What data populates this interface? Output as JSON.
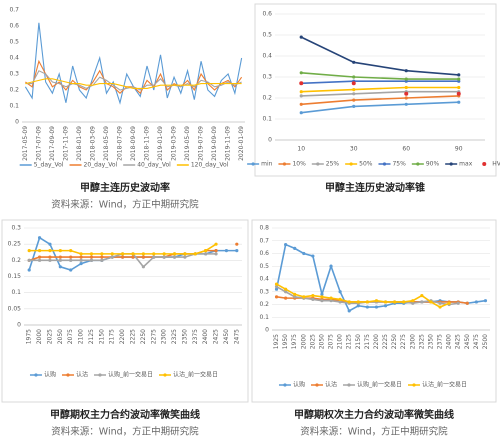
{
  "chart_data": [
    {
      "type": "line",
      "title": "甲醇主连历史波动率",
      "source": "资料来源：Wind，方正中期研究院",
      "categories": [
        "2017-05-09",
        null,
        "2017-07-09",
        null,
        "2017-09-09",
        null,
        "2017-11-09",
        null,
        "2018-01-09",
        null,
        "2018-03-09",
        null,
        "2018-05-09",
        null,
        "2018-07-09",
        null,
        "2018-09-09",
        null,
        "2018-11-09",
        null,
        "2019-01-09",
        null,
        "2019-03-09",
        null,
        "2019-05-09",
        null,
        "2019-07-09",
        null,
        "2019-09-09",
        null,
        "2019-11-09",
        null,
        "2020-01-09"
      ],
      "series": [
        {
          "name": "5_day_Vol",
          "color": "#5b9bd5",
          "values": [
            0.22,
            0.15,
            0.62,
            0.25,
            0.18,
            0.3,
            0.12,
            0.35,
            0.2,
            0.15,
            0.28,
            0.4,
            0.18,
            0.25,
            0.12,
            0.3,
            0.22,
            0.16,
            0.35,
            0.2,
            0.42,
            0.15,
            0.28,
            0.18,
            0.32,
            0.14,
            0.38,
            0.2,
            0.16,
            0.26,
            0.3,
            0.18,
            0.4
          ]
        },
        {
          "name": "20_day_Vol",
          "color": "#ed7d31",
          "values": [
            0.25,
            0.22,
            0.38,
            0.3,
            0.22,
            0.25,
            0.2,
            0.26,
            0.22,
            0.2,
            0.25,
            0.32,
            0.24,
            0.22,
            0.18,
            0.22,
            0.22,
            0.18,
            0.26,
            0.22,
            0.3,
            0.2,
            0.24,
            0.22,
            0.26,
            0.2,
            0.3,
            0.24,
            0.2,
            0.24,
            0.26,
            0.22,
            0.28
          ]
        },
        {
          "name": "40_day_Vol",
          "color": "#a5a5a5",
          "values": [
            0.24,
            0.24,
            0.32,
            0.3,
            0.25,
            0.24,
            0.22,
            0.24,
            0.23,
            0.21,
            0.23,
            0.28,
            0.26,
            0.23,
            0.2,
            0.21,
            0.22,
            0.2,
            0.23,
            0.23,
            0.27,
            0.22,
            0.23,
            0.22,
            0.24,
            0.22,
            0.26,
            0.25,
            0.22,
            0.23,
            0.25,
            0.23,
            0.25
          ]
        },
        {
          "name": "120_day_Vol",
          "color": "#ffc000",
          "values": [
            0.24,
            0.25,
            0.26,
            0.27,
            0.27,
            0.26,
            0.25,
            0.24,
            0.24,
            0.23,
            0.23,
            0.24,
            0.24,
            0.24,
            0.23,
            0.22,
            0.21,
            0.21,
            0.21,
            0.22,
            0.23,
            0.23,
            0.23,
            0.23,
            0.23,
            0.23,
            0.24,
            0.24,
            0.24,
            0.24,
            0.24,
            0.24,
            0.24
          ]
        }
      ],
      "ylim": [
        0,
        0.7
      ],
      "yticks": [
        0,
        0.1,
        0.2,
        0.3,
        0.4,
        0.5,
        0.6,
        0.7
      ],
      "grid": false,
      "markers": false
    },
    {
      "type": "line",
      "title": "甲醇主连历史波动率锥",
      "categories": [
        "10",
        "30",
        "60",
        "90"
      ],
      "series": [
        {
          "name": "min",
          "color": "#5b9bd5",
          "values": [
            0.13,
            0.16,
            0.17,
            0.18
          ]
        },
        {
          "name": "10%",
          "color": "#ed7d31",
          "values": [
            0.17,
            0.19,
            0.2,
            0.21
          ]
        },
        {
          "name": "25%",
          "color": "#a5a5a5",
          "values": [
            0.21,
            0.22,
            0.23,
            0.23
          ]
        },
        {
          "name": "50%",
          "color": "#ffc000",
          "values": [
            0.23,
            0.24,
            0.25,
            0.25
          ]
        },
        {
          "name": "75%",
          "color": "#4472c4",
          "values": [
            0.27,
            0.28,
            0.28,
            0.28
          ]
        },
        {
          "name": "90%",
          "color": "#70ad47",
          "values": [
            0.32,
            0.3,
            0.29,
            0.29
          ]
        },
        {
          "name": "max",
          "color": "#264478",
          "values": [
            0.49,
            0.37,
            0.33,
            0.31
          ]
        },
        {
          "name": "HV",
          "color": "#e03030",
          "style": "markers",
          "values": [
            0.27,
            0.27,
            0.22,
            0.22
          ]
        }
      ],
      "ylim": [
        0,
        0.6
      ],
      "yticks": [
        0,
        0.1,
        0.2,
        0.3,
        0.4,
        0.5,
        0.6
      ],
      "grid": true,
      "markers": true
    },
    {
      "type": "line",
      "title": "甲醇期权主力合约波动率微笑曲线",
      "source": "资料来源：Wind，方正中期研究院",
      "categories": [
        "1975",
        "2000",
        "2025",
        "2050",
        "2075",
        "2100",
        "2125",
        "2150",
        "2175",
        "2200",
        "2225",
        "2250",
        "2275",
        "2300",
        "2325",
        "2350",
        "2375",
        "2400",
        "2425",
        "2450",
        "2475"
      ],
      "series": [
        {
          "name": "认购",
          "color": "#5b9bd5",
          "values": [
            0.17,
            0.27,
            0.25,
            0.18,
            0.17,
            0.19,
            0.2,
            0.2,
            0.21,
            0.21,
            0.21,
            0.21,
            0.21,
            0.21,
            0.21,
            0.22,
            0.22,
            0.22,
            0.23,
            0.23,
            0.23
          ]
        },
        {
          "name": "认沽",
          "color": "#ed7d31",
          "values": [
            0.2,
            0.21,
            0.21,
            0.21,
            0.21,
            0.21,
            0.21,
            0.21,
            0.21,
            0.21,
            0.21,
            0.21,
            0.21,
            0.21,
            0.22,
            0.22,
            0.22,
            0.23,
            0.23,
            null,
            0.25
          ]
        },
        {
          "name": "认购_前一交易日",
          "color": "#a5a5a5",
          "values": [
            0.2,
            0.2,
            0.2,
            0.2,
            0.2,
            0.2,
            0.2,
            0.2,
            0.21,
            0.22,
            0.22,
            0.18,
            0.21,
            0.21,
            0.21,
            0.21,
            0.22,
            0.22,
            0.22,
            null,
            null
          ]
        },
        {
          "name": "认沽_前一交易日",
          "color": "#ffc000",
          "values": [
            0.23,
            0.23,
            0.23,
            0.23,
            0.23,
            0.22,
            0.22,
            0.22,
            0.22,
            0.22,
            0.22,
            0.22,
            0.22,
            0.22,
            0.22,
            0.22,
            0.22,
            0.23,
            0.25,
            null,
            null
          ]
        }
      ],
      "ylim": [
        0,
        0.3
      ],
      "yticks": [
        0,
        0.05,
        0.1,
        0.15,
        0.2,
        0.25,
        0.3
      ],
      "grid": true,
      "markers": true
    },
    {
      "type": "line",
      "title": "甲醇期权次主力合约波动率微笑曲线",
      "source": "资料来源：Wind，方正中期研究院",
      "categories": [
        "1925",
        "1950",
        "1975",
        "2000",
        "2025",
        "2050",
        "2075",
        "2100",
        "2125",
        "2150",
        "2175",
        "2200",
        "2225",
        "2250",
        "2275",
        "2300",
        "2325",
        "2350",
        "2375",
        "2400",
        "2425",
        "2450",
        "2475",
        "2500"
      ],
      "series": [
        {
          "name": "认购",
          "color": "#5b9bd5",
          "values": [
            0.32,
            0.67,
            0.64,
            0.6,
            0.58,
            0.28,
            0.5,
            0.3,
            0.15,
            0.19,
            0.18,
            0.18,
            0.19,
            0.21,
            0.21,
            0.22,
            0.22,
            0.22,
            0.23,
            0.22,
            0.22,
            0.21,
            0.22,
            0.23
          ]
        },
        {
          "name": "认沽",
          "color": "#ed7d31",
          "values": [
            0.26,
            0.25,
            0.25,
            0.25,
            0.25,
            0.24,
            0.24,
            0.23,
            0.22,
            0.22,
            0.22,
            0.22,
            0.22,
            0.22,
            0.22,
            0.22,
            0.22,
            0.22,
            0.22,
            0.22,
            0.22,
            0.21,
            null,
            null
          ]
        },
        {
          "name": "认购_前一交易日",
          "color": "#a5a5a5",
          "values": [
            0.34,
            0.3,
            0.26,
            0.25,
            0.24,
            0.23,
            0.23,
            0.22,
            0.21,
            0.21,
            0.22,
            0.22,
            0.22,
            0.22,
            0.22,
            0.21,
            0.22,
            0.23,
            0.21,
            0.2,
            0.21,
            null,
            null,
            null
          ]
        },
        {
          "name": "认沽_前一交易日",
          "color": "#ffc000",
          "values": [
            0.36,
            0.32,
            0.28,
            0.26,
            0.27,
            0.26,
            0.25,
            0.24,
            0.22,
            0.22,
            0.22,
            0.23,
            0.22,
            0.22,
            0.22,
            0.23,
            0.27,
            0.22,
            0.18,
            0.21,
            null,
            null,
            null,
            null
          ]
        }
      ],
      "ylim": [
        0,
        0.8
      ],
      "yticks": [
        0,
        0.1,
        0.2,
        0.3,
        0.4,
        0.5,
        0.6,
        0.7,
        0.8
      ],
      "grid": true,
      "markers": true
    }
  ]
}
